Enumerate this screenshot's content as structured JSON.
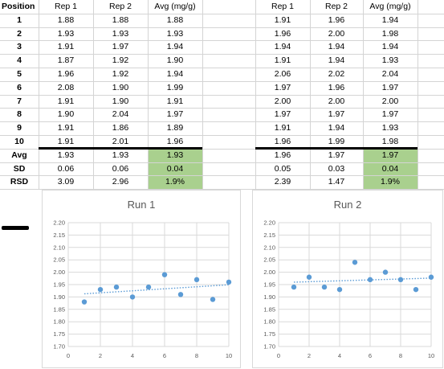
{
  "headers": {
    "position": "Position",
    "left": [
      "Rep 1",
      "Rep 2",
      "Avg (mg/g)"
    ],
    "right": [
      "Rep 1",
      "Rep 2",
      "Avg (mg/g)"
    ]
  },
  "rows": [
    {
      "pos": "1",
      "l": [
        "1.88",
        "1.88",
        "1.88"
      ],
      "r": [
        "1.91",
        "1.96",
        "1.94"
      ]
    },
    {
      "pos": "2",
      "l": [
        "1.93",
        "1.93",
        "1.93"
      ],
      "r": [
        "1.96",
        "2.00",
        "1.98"
      ]
    },
    {
      "pos": "3",
      "l": [
        "1.91",
        "1.97",
        "1.94"
      ],
      "r": [
        "1.94",
        "1.94",
        "1.94"
      ]
    },
    {
      "pos": "4",
      "l": [
        "1.87",
        "1.92",
        "1.90"
      ],
      "r": [
        "1.91",
        "1.94",
        "1.93"
      ]
    },
    {
      "pos": "5",
      "l": [
        "1.96",
        "1.92",
        "1.94"
      ],
      "r": [
        "2.06",
        "2.02",
        "2.04"
      ]
    },
    {
      "pos": "6",
      "l": [
        "2.08",
        "1.90",
        "1.99"
      ],
      "r": [
        "1.97",
        "1.96",
        "1.97"
      ]
    },
    {
      "pos": "7",
      "l": [
        "1.91",
        "1.90",
        "1.91"
      ],
      "r": [
        "2.00",
        "2.00",
        "2.00"
      ]
    },
    {
      "pos": "8",
      "l": [
        "1.90",
        "2.04",
        "1.97"
      ],
      "r": [
        "1.97",
        "1.97",
        "1.97"
      ]
    },
    {
      "pos": "9",
      "l": [
        "1.91",
        "1.86",
        "1.89"
      ],
      "r": [
        "1.91",
        "1.94",
        "1.93"
      ]
    },
    {
      "pos": "10",
      "l": [
        "1.91",
        "2.01",
        "1.96"
      ],
      "r": [
        "1.96",
        "1.99",
        "1.98"
      ]
    }
  ],
  "stats": [
    {
      "label": "Avg",
      "l": [
        "1.93",
        "1.93",
        "1.93"
      ],
      "r": [
        "1.96",
        "1.97",
        "1.97"
      ]
    },
    {
      "label": "SD",
      "l": [
        "0.06",
        "0.06",
        "0.04"
      ],
      "r": [
        "0.05",
        "0.03",
        "0.04"
      ]
    },
    {
      "label": "RSD",
      "l": [
        "3.09",
        "2.96",
        "1.9%"
      ],
      "r": [
        "2.39",
        "1.47",
        "1.9%"
      ]
    }
  ],
  "colors": {
    "highlight": "#a9d08e",
    "point": "#5b9bd5",
    "trendline": "#5b9bd5",
    "gridline": "#d9d9d9"
  },
  "chart_data": [
    {
      "type": "scatter",
      "title": "Run 1",
      "x": [
        1,
        2,
        3,
        4,
        5,
        6,
        7,
        8,
        9,
        10
      ],
      "y": [
        1.88,
        1.93,
        1.94,
        1.9,
        1.94,
        1.99,
        1.91,
        1.97,
        1.89,
        1.96
      ],
      "trendline": "linear",
      "xlim": [
        0,
        10
      ],
      "ylim": [
        1.7,
        2.2
      ],
      "xticks": [
        "0",
        "2",
        "4",
        "6",
        "8",
        "10"
      ],
      "yticks": [
        "1.70",
        "1.75",
        "1.80",
        "1.85",
        "1.90",
        "1.95",
        "2.00",
        "2.05",
        "2.10",
        "2.15",
        "2.20"
      ],
      "grid": true
    },
    {
      "type": "scatter",
      "title": "Run 2",
      "x": [
        1,
        2,
        3,
        4,
        5,
        6,
        7,
        8,
        9,
        10
      ],
      "y": [
        1.94,
        1.98,
        1.94,
        1.93,
        2.04,
        1.97,
        2.0,
        1.97,
        1.93,
        1.98
      ],
      "trendline": "linear",
      "xlim": [
        0,
        10
      ],
      "ylim": [
        1.7,
        2.2
      ],
      "xticks": [
        "0",
        "2",
        "4",
        "6",
        "8",
        "10"
      ],
      "yticks": [
        "1.70",
        "1.75",
        "1.80",
        "1.85",
        "1.90",
        "1.95",
        "2.00",
        "2.05",
        "2.10",
        "2.15",
        "2.20"
      ],
      "grid": true
    }
  ]
}
